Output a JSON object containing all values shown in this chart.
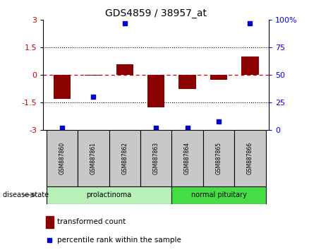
{
  "title": "GDS4859 / 38957_at",
  "samples": [
    "GSM887860",
    "GSM887861",
    "GSM887862",
    "GSM887863",
    "GSM887864",
    "GSM887865",
    "GSM887866"
  ],
  "transformed_counts": [
    -1.3,
    -0.05,
    0.6,
    -1.75,
    -0.75,
    -0.25,
    1.0
  ],
  "percentile_ranks": [
    2,
    30,
    97,
    2,
    2,
    8,
    97
  ],
  "group_info": [
    {
      "label": "prolactinoma",
      "start": 0,
      "end": 3,
      "color": "#b8f0b8"
    },
    {
      "label": "normal pituitary",
      "start": 4,
      "end": 6,
      "color": "#44dd44"
    }
  ],
  "bar_color": "#8B0000",
  "dot_color": "#0000CC",
  "ylim": [
    -3,
    3
  ],
  "yticks_left": [
    -3,
    -1.5,
    0,
    1.5,
    3
  ],
  "ytick_left_labels": [
    "-3",
    "-1.5",
    "0",
    "1.5",
    "3"
  ],
  "yticks_right": [
    0,
    25,
    50,
    75,
    100
  ],
  "ytick_right_labels": [
    "0",
    "25",
    "50",
    "75",
    "100%"
  ],
  "y2lim": [
    0,
    100
  ],
  "disease_state_label": "disease state",
  "legend_bar_label": "transformed count",
  "legend_dot_label": "percentile rank within the sample",
  "bar_width": 0.55,
  "sample_box_color": "#C8C8C8"
}
